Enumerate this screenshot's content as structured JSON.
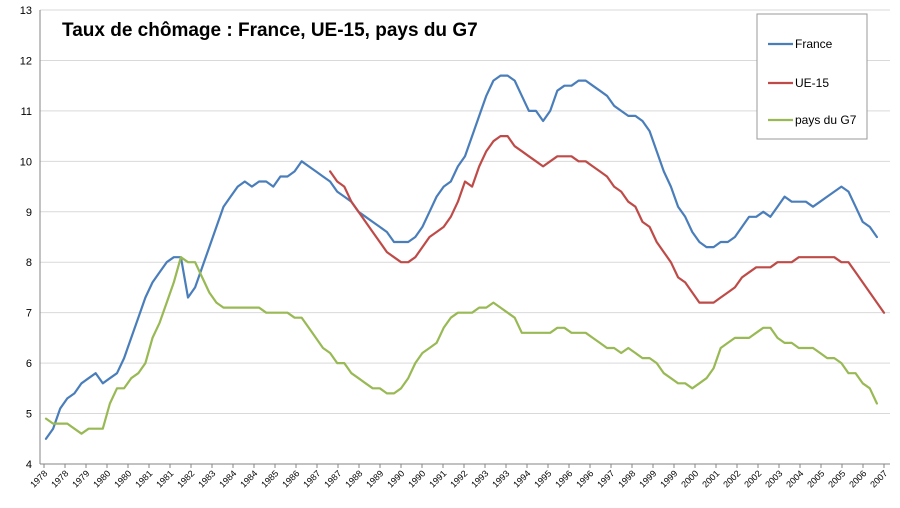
{
  "chart_data": {
    "type": "line",
    "title": "Taux de chômage  : France, UE-15,  pays du G7",
    "xlabel": "",
    "ylabel": "",
    "ylim": [
      4,
      13
    ],
    "y_ticks": [
      4,
      5,
      6,
      7,
      8,
      9,
      10,
      11,
      12,
      13
    ],
    "x_tick_labels": [
      "1978",
      "1978",
      "1979",
      "1980",
      "1980",
      "1981",
      "1981",
      "1982",
      "1983",
      "1984",
      "1984",
      "1985",
      "1986",
      "1987",
      "1987",
      "1988",
      "1989",
      "1990",
      "1990",
      "1991",
      "1992",
      "1993",
      "1993",
      "1994",
      "1995",
      "1996",
      "1996",
      "1997",
      "1998",
      "1999",
      "1999",
      "2000",
      "2001",
      "2002",
      "2002",
      "2003",
      "2004",
      "2005",
      "2005",
      "2006",
      "2007"
    ],
    "grid": true,
    "legend_position": "top-right",
    "series": [
      {
        "name": "France",
        "color": "#4a7ebb",
        "start_index": 0,
        "values": [
          4.5,
          4.7,
          5.1,
          5.3,
          5.4,
          5.6,
          5.7,
          5.8,
          5.6,
          5.7,
          5.8,
          6.1,
          6.5,
          6.9,
          7.3,
          7.6,
          7.8,
          8.0,
          8.1,
          8.1,
          7.3,
          7.5,
          7.9,
          8.3,
          8.7,
          9.1,
          9.3,
          9.5,
          9.6,
          9.5,
          9.6,
          9.6,
          9.5,
          9.7,
          9.7,
          9.8,
          10.0,
          9.9,
          9.8,
          9.7,
          9.6,
          9.4,
          9.3,
          9.2,
          9.0,
          8.9,
          8.8,
          8.7,
          8.6,
          8.4,
          8.4,
          8.4,
          8.5,
          8.7,
          9.0,
          9.3,
          9.5,
          9.6,
          9.9,
          10.1,
          10.5,
          10.9,
          11.3,
          11.6,
          11.7,
          11.7,
          11.6,
          11.3,
          11.0,
          11.0,
          10.8,
          11.0,
          11.4,
          11.5,
          11.5,
          11.6,
          11.6,
          11.5,
          11.4,
          11.3,
          11.1,
          11.0,
          10.9,
          10.9,
          10.8,
          10.6,
          10.2,
          9.8,
          9.5,
          9.1,
          8.9,
          8.6,
          8.4,
          8.3,
          8.3,
          8.4,
          8.4,
          8.5,
          8.7,
          8.9,
          8.9,
          9.0,
          8.9,
          9.1,
          9.3,
          9.2,
          9.2,
          9.2,
          9.1,
          9.2,
          9.3,
          9.4,
          9.5,
          9.4,
          9.1,
          8.8,
          8.7,
          8.5
        ]
      },
      {
        "name": "UE-15",
        "color": "#be4b48",
        "start_index": 40,
        "values": [
          9.8,
          9.6,
          9.5,
          9.2,
          9.0,
          8.8,
          8.6,
          8.4,
          8.2,
          8.1,
          8.0,
          8.0,
          8.1,
          8.3,
          8.5,
          8.6,
          8.7,
          8.9,
          9.2,
          9.6,
          9.5,
          9.9,
          10.2,
          10.4,
          10.5,
          10.5,
          10.3,
          10.2,
          10.1,
          10.0,
          9.9,
          10.0,
          10.1,
          10.1,
          10.1,
          10.0,
          10.0,
          9.9,
          9.8,
          9.7,
          9.5,
          9.4,
          9.2,
          9.1,
          8.8,
          8.7,
          8.4,
          8.2,
          8.0,
          7.7,
          7.6,
          7.4,
          7.2,
          7.2,
          7.2,
          7.3,
          7.4,
          7.5,
          7.7,
          7.8,
          7.9,
          7.9,
          7.9,
          8.0,
          8.0,
          8.0,
          8.1,
          8.1,
          8.1,
          8.1,
          8.1,
          8.1,
          8.0,
          8.0,
          7.8,
          7.6,
          7.4,
          7.2,
          7.0
        ]
      },
      {
        "name": "pays du G7",
        "color": "#98b954",
        "start_index": 0,
        "values": [
          4.9,
          4.8,
          4.8,
          4.8,
          4.7,
          4.6,
          4.7,
          4.7,
          4.7,
          5.2,
          5.5,
          5.5,
          5.7,
          5.8,
          6.0,
          6.5,
          6.8,
          7.2,
          7.6,
          8.1,
          8.0,
          8.0,
          7.7,
          7.4,
          7.2,
          7.1,
          7.1,
          7.1,
          7.1,
          7.1,
          7.1,
          7.0,
          7.0,
          7.0,
          7.0,
          6.9,
          6.9,
          6.7,
          6.5,
          6.3,
          6.2,
          6.0,
          6.0,
          5.8,
          5.7,
          5.6,
          5.5,
          5.5,
          5.4,
          5.4,
          5.5,
          5.7,
          6.0,
          6.2,
          6.3,
          6.4,
          6.7,
          6.9,
          7.0,
          7.0,
          7.0,
          7.1,
          7.1,
          7.2,
          7.1,
          7.0,
          6.9,
          6.6,
          6.6,
          6.6,
          6.6,
          6.6,
          6.7,
          6.7,
          6.6,
          6.6,
          6.6,
          6.5,
          6.4,
          6.3,
          6.3,
          6.2,
          6.3,
          6.2,
          6.1,
          6.1,
          6.0,
          5.8,
          5.7,
          5.6,
          5.6,
          5.5,
          5.6,
          5.7,
          5.9,
          6.3,
          6.4,
          6.5,
          6.5,
          6.5,
          6.6,
          6.7,
          6.7,
          6.5,
          6.4,
          6.4,
          6.3,
          6.3,
          6.3,
          6.2,
          6.1,
          6.1,
          6.0,
          5.8,
          5.8,
          5.6,
          5.5,
          5.2
        ]
      }
    ]
  }
}
